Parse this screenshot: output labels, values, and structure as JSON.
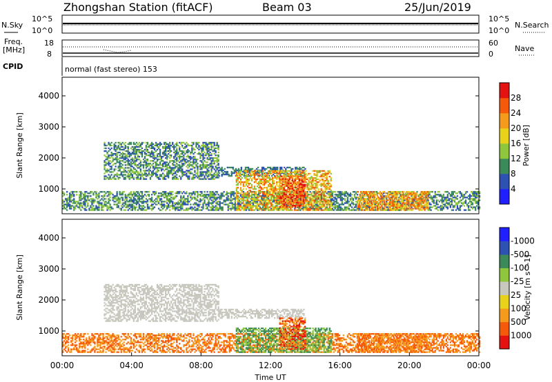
{
  "header": {
    "title": "Zhongshan Station (fitACF)",
    "beam": "Beam 03",
    "date": "25/Jun/2019"
  },
  "strip_panels": {
    "nsky": {
      "left_label": "N.Sky",
      "right_label": "N.Search",
      "left_ticks": [
        "10^5",
        "10^0"
      ],
      "right_ticks": [
        "10^5",
        "10^0"
      ]
    },
    "freq": {
      "left_label_1": "Freq.",
      "left_label_2": "[MHz]",
      "right_label": "Nave",
      "left_ticks": [
        "18",
        "8"
      ],
      "right_ticks": [
        "60",
        "0"
      ]
    },
    "cpid": {
      "label": "CPID",
      "text": "normal (fast stereo) 153"
    }
  },
  "chart_data": [
    {
      "type": "heatmap",
      "name": "power",
      "xlabel": "",
      "ylabel": "Slant Range [km]",
      "xlim": [
        0,
        24
      ],
      "ylim": [
        200,
        4600
      ],
      "yticks": [
        1000,
        2000,
        3000,
        4000
      ],
      "colorbar": {
        "label": "Power [dB]",
        "ticks": [
          "4",
          "8",
          "12",
          "16",
          "20",
          "24",
          "28"
        ],
        "colors": [
          "#1f1fff",
          "#2e52b4",
          "#3c8a5a",
          "#8ec63c",
          "#e8d21a",
          "#f59a1a",
          "#f55a0a",
          "#e51212"
        ]
      },
      "regions": [
        {
          "t": [
            0,
            24
          ],
          "r": [
            300,
            900
          ],
          "levels": [
            1,
            2,
            3
          ]
        },
        {
          "t": [
            2.4,
            9
          ],
          "r": [
            1300,
            2500
          ],
          "levels": [
            1,
            2,
            3
          ]
        },
        {
          "t": [
            9,
            14
          ],
          "r": [
            1400,
            1700
          ],
          "levels": [
            1,
            2
          ]
        },
        {
          "t": [
            10,
            15.5
          ],
          "r": [
            300,
            1600
          ],
          "levels": [
            3,
            4,
            5,
            6
          ]
        },
        {
          "t": [
            12.5,
            14
          ],
          "r": [
            400,
            1400
          ],
          "levels": [
            5,
            6,
            7
          ]
        },
        {
          "t": [
            17,
            21
          ],
          "r": [
            300,
            900
          ],
          "levels": [
            4,
            5,
            6
          ]
        }
      ]
    },
    {
      "type": "heatmap",
      "name": "velocity",
      "xlabel": "Time UT",
      "ylabel": "Slant Range [km]",
      "xlim": [
        0,
        24
      ],
      "ylim": [
        200,
        4600
      ],
      "yticks": [
        1000,
        2000,
        3000,
        4000
      ],
      "xticks": [
        "00:00",
        "04:00",
        "08:00",
        "12:00",
        "16:00",
        "20:00",
        "00:00"
      ],
      "colorbar": {
        "label": "Velocity [m s^-1]",
        "ticks": [
          "1000",
          "500",
          "100",
          "25",
          "-25",
          "-100",
          "-500",
          "-1000"
        ],
        "colors": [
          "#1f1fff",
          "#2e52b4",
          "#3c8a5a",
          "#8ec63c",
          "#c8c8be",
          "#e8d21a",
          "#f59a1a",
          "#f55a0a",
          "#e51212"
        ]
      },
      "regions": [
        {
          "t": [
            0,
            24
          ],
          "r": [
            300,
            900
          ],
          "levels": [
            6,
            7
          ]
        },
        {
          "t": [
            2.4,
            9
          ],
          "r": [
            1300,
            2500
          ],
          "levels": [
            4
          ]
        },
        {
          "t": [
            9,
            14
          ],
          "r": [
            1400,
            1700
          ],
          "levels": [
            4
          ]
        },
        {
          "t": [
            10,
            15.5
          ],
          "r": [
            300,
            1100
          ],
          "levels": [
            2,
            3
          ]
        },
        {
          "t": [
            12.5,
            14
          ],
          "r": [
            400,
            1400
          ],
          "levels": [
            6,
            7,
            8
          ]
        },
        {
          "t": [
            17,
            21
          ],
          "r": [
            300,
            900
          ],
          "levels": [
            6,
            7
          ]
        }
      ]
    }
  ]
}
